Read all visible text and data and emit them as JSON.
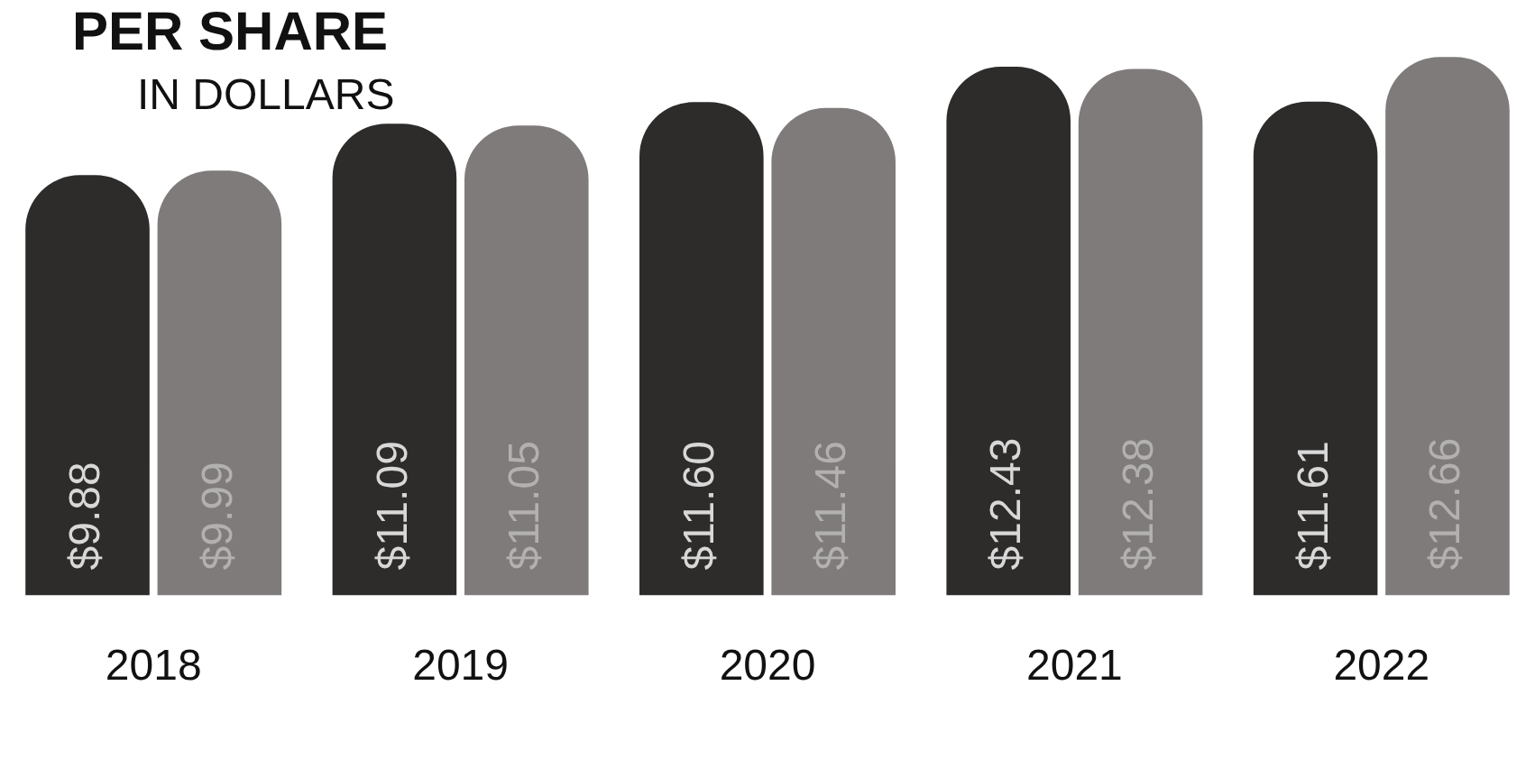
{
  "chart_data": {
    "type": "bar",
    "title": "PER SHARE",
    "subtitle": "IN DOLLARS",
    "categories": [
      "2018",
      "2019",
      "2020",
      "2021",
      "2022"
    ],
    "series": [
      {
        "color": "#2d2c2b",
        "values": [
          9.88,
          11.09,
          11.6,
          12.43,
          11.61
        ],
        "value_labels": [
          "$9.88",
          "$11.09",
          "$11.60",
          "$12.43",
          "$11.61"
        ]
      },
      {
        "color": "#7f7b7b",
        "values": [
          9.99,
          11.05,
          11.46,
          12.38,
          12.66
        ],
        "value_labels": [
          "$9.99",
          "$11.05",
          "$11.46",
          "$12.38",
          "$12.66"
        ]
      }
    ],
    "grid": false,
    "legend": false,
    "tick_labels": "x"
  }
}
